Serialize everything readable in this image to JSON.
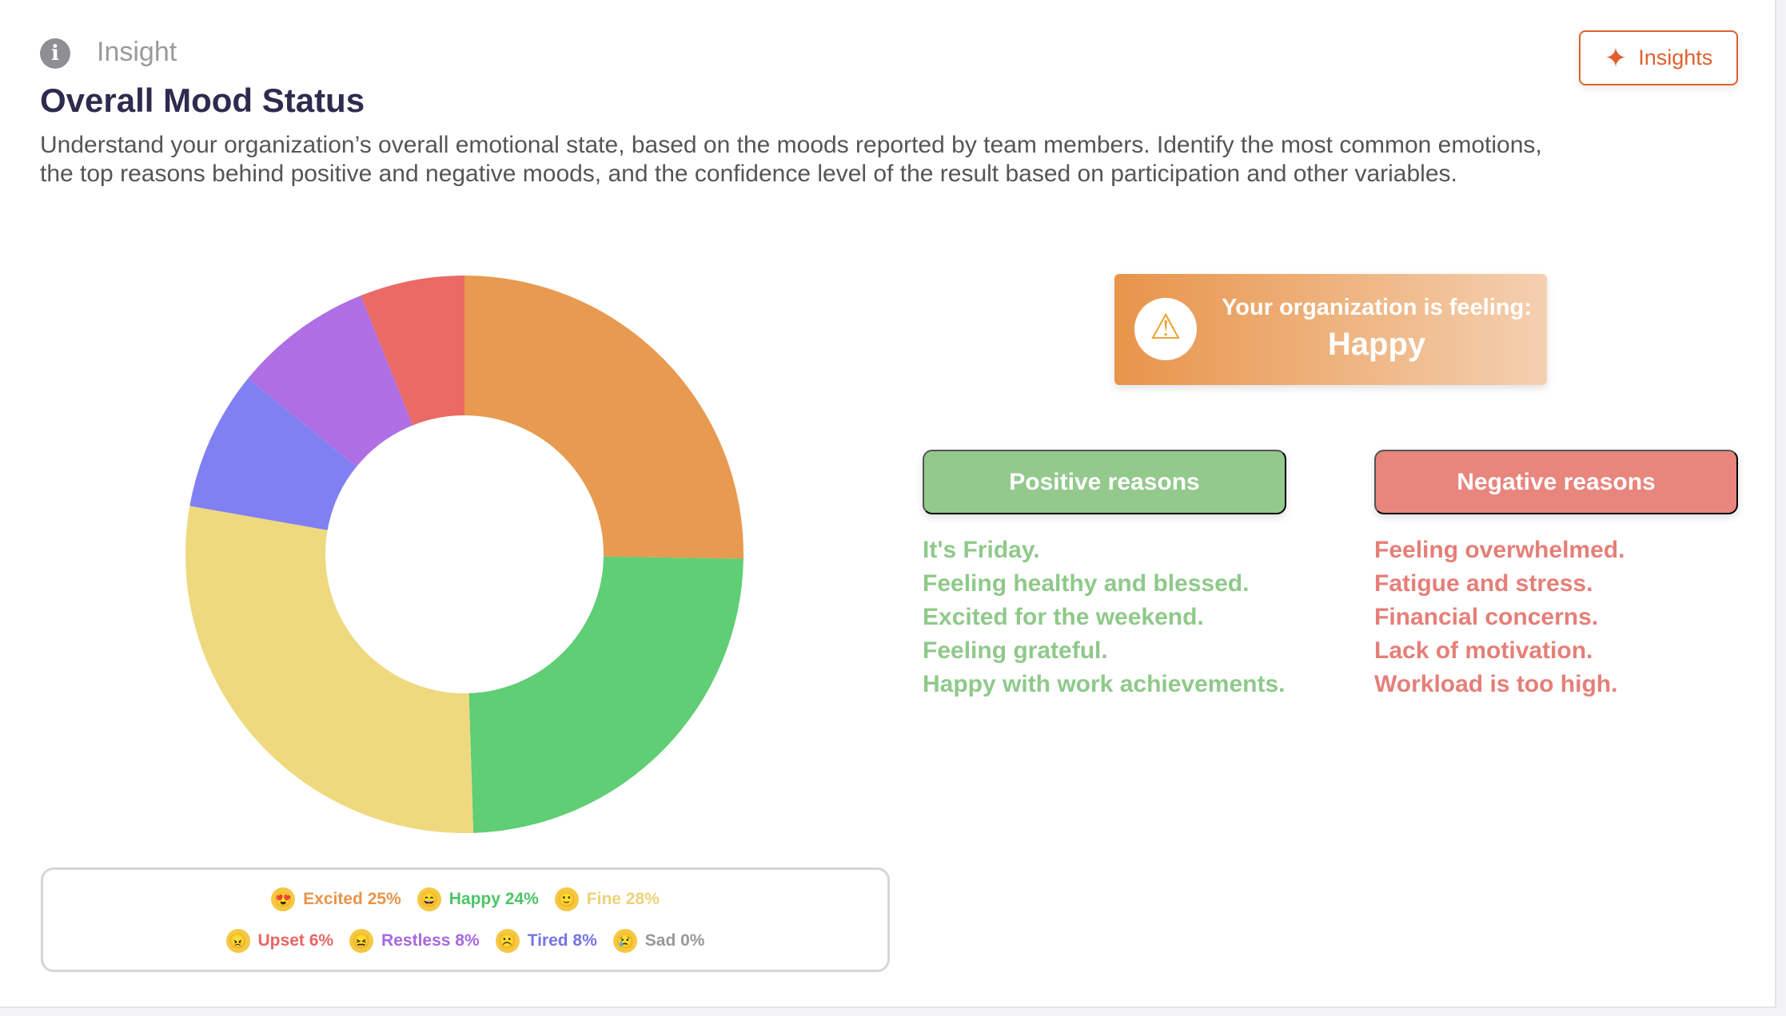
{
  "header": {
    "kicker": "Insight",
    "title": "Overall Mood Status",
    "description": "Understand your organization’s overall emotional state, based on the moods reported by team members. Identify the most common emotions, the top reasons behind positive and negative moods, and the confidence level of the result based on participation and other variables.",
    "insights_button": "Insights"
  },
  "feeling": {
    "label": "Your organization is feeling:",
    "value": "Happy"
  },
  "positive": {
    "title": "Positive reasons",
    "items": [
      "It's Friday.",
      "Feeling healthy and blessed.",
      "Excited for the weekend.",
      "Feeling grateful.",
      "Happy with work achievements."
    ],
    "color": "#8fc98a"
  },
  "negative": {
    "title": "Negative reasons",
    "items": [
      "Feeling overwhelmed.",
      "Fatigue and stress.",
      "Financial concerns.",
      "Lack of motivation.",
      "Workload is too high."
    ],
    "color": "#e57f78"
  },
  "legend": [
    {
      "text": "Excited 25%",
      "emoji": "😍",
      "color": "#e8944a"
    },
    {
      "text": "Happy 24%",
      "emoji": "😄",
      "color": "#4cc466"
    },
    {
      "text": "Fine 28%",
      "emoji": "🙂",
      "color": "#ecd27a"
    },
    {
      "text": "Upset 6%",
      "emoji": "😠",
      "color": "#e86565"
    },
    {
      "text": "Restless 8%",
      "emoji": "😖",
      "color": "#a668e0"
    },
    {
      "text": "Tired 8%",
      "emoji": "☹️",
      "color": "#7474e8"
    },
    {
      "text": "Sad 0%",
      "emoji": "😢",
      "color": "#999999"
    }
  ],
  "chart_data": {
    "type": "pie",
    "donut": true,
    "categories": [
      "Excited",
      "Happy",
      "Fine",
      "Tired",
      "Restless",
      "Upset",
      "Sad"
    ],
    "values": [
      25,
      24,
      28,
      8,
      8,
      6,
      0
    ],
    "colors": [
      "#e89a50",
      "#5fce74",
      "#eed97f",
      "#8080f2",
      "#ae6fe5",
      "#eb6a66",
      "#999999"
    ]
  }
}
